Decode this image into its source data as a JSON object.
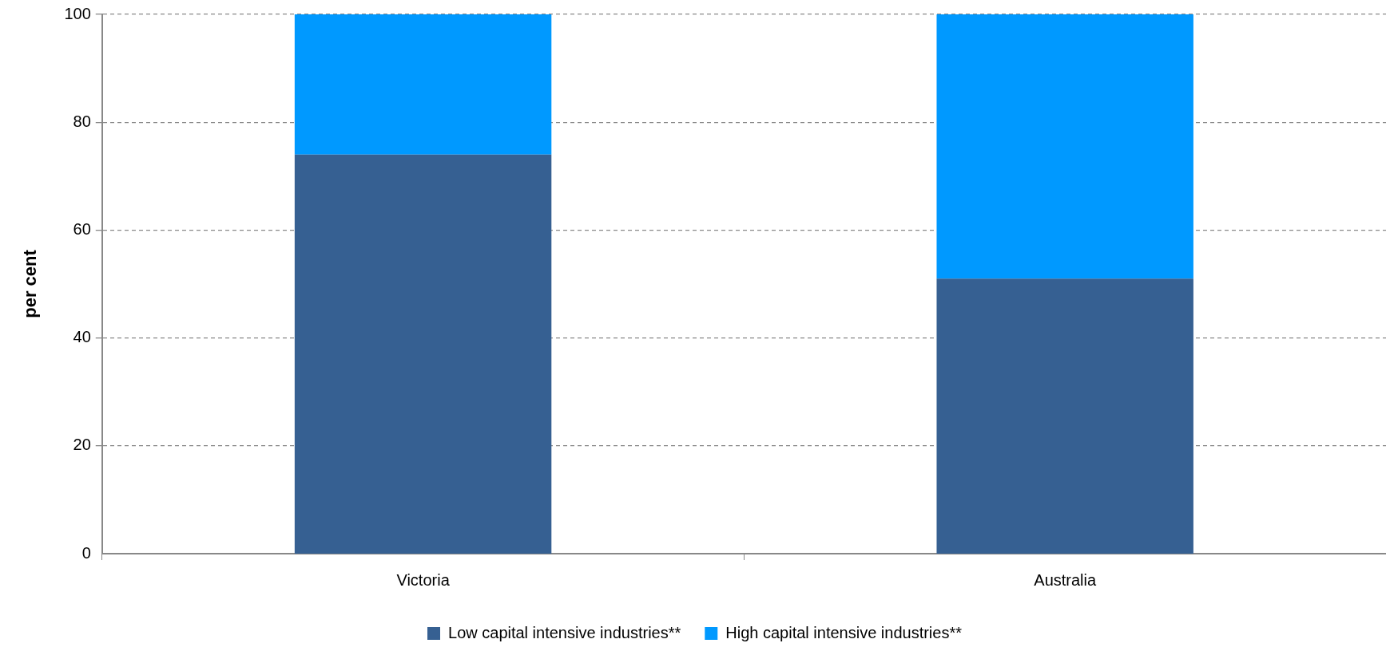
{
  "chart_data": {
    "type": "bar",
    "ylabel": "per cent",
    "categories": [
      "Victoria",
      "Australia"
    ],
    "stacked": true,
    "series": [
      {
        "name": "Low capital intensive industries**",
        "color": "#366092",
        "values": [
          74,
          51
        ]
      },
      {
        "name": "High capital intensive industries**",
        "color": "#0099ff",
        "values": [
          26,
          49
        ]
      }
    ],
    "ylim": [
      0,
      100
    ],
    "yticks": [
      0,
      20,
      40,
      60,
      80,
      100
    ],
    "grid": "y",
    "legend": "bottom"
  }
}
